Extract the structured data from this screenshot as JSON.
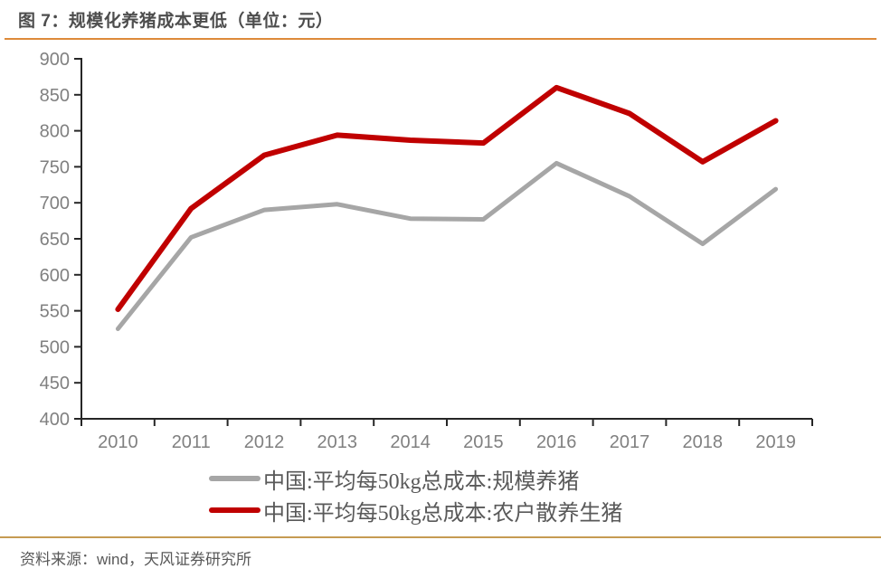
{
  "title": "图 7：规模化养猪成本更低（单位：元）",
  "footer": {
    "source_label": "资料来源：wind，天风证券研究所"
  },
  "colors": {
    "top_rule": "#dd8a3a",
    "bottom_rule": "#c69b52",
    "axis": "#262626",
    "tick_label": "#808080",
    "title_text": "#4d4d4d",
    "legend_text": "#595959"
  },
  "chart_data": {
    "type": "line",
    "title": "图 7：规模化养猪成本更低（单位：元）",
    "categories": [
      "2010",
      "2011",
      "2012",
      "2013",
      "2014",
      "2015",
      "2016",
      "2017",
      "2018",
      "2019"
    ],
    "series": [
      {
        "name": "中国:平均每50kg总成本:规模养猪",
        "color": "#a6a6a6",
        "values": [
          525,
          652,
          690,
          698,
          678,
          677,
          755,
          709,
          643,
          719
        ]
      },
      {
        "name": "中国:平均每50kg总成本:农户散养生猪",
        "color": "#c00000",
        "values": [
          552,
          692,
          766,
          794,
          787,
          783,
          860,
          824,
          757,
          814
        ]
      }
    ],
    "ylim": [
      400,
      900
    ],
    "ytick_step": 50,
    "grid": false,
    "legend_position": "bottom"
  }
}
